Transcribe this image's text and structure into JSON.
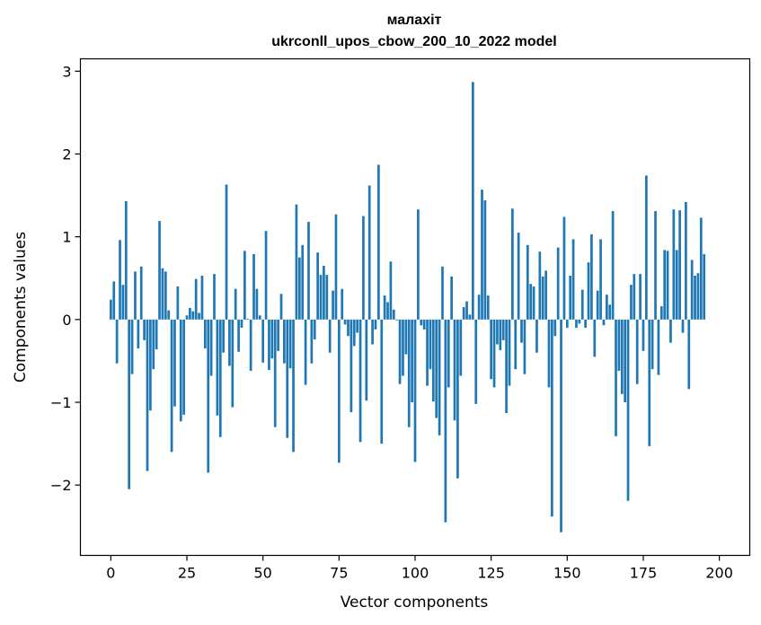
{
  "chart_data": {
    "type": "bar",
    "title": "малахіт",
    "subtitle": "ukrconll_upos_cbow_200_10_2022 model",
    "xlabel": "Vector components",
    "ylabel": "Components values",
    "xlim": [
      -10,
      210
    ],
    "ylim": [
      -2.85,
      3.15
    ],
    "xticks": [
      0,
      25,
      50,
      75,
      100,
      125,
      150,
      175,
      200
    ],
    "yticks": [
      -2,
      -1,
      0,
      1,
      2,
      3
    ],
    "bar_color": "#1f77b4",
    "grid": false,
    "values": [
      0.24,
      0.46,
      -0.53,
      0.96,
      0.42,
      1.43,
      -2.05,
      -0.66,
      0.58,
      -0.35,
      0.64,
      -0.25,
      -1.83,
      -1.1,
      -0.6,
      -0.36,
      1.19,
      0.62,
      0.58,
      0.11,
      -1.6,
      -1.05,
      0.4,
      -1.23,
      -1.15,
      0.05,
      0.14,
      0.1,
      0.49,
      0.08,
      0.53,
      -0.35,
      -1.85,
      -0.68,
      0.55,
      -1.16,
      -1.42,
      -0.4,
      1.63,
      -0.56,
      -1.06,
      0.37,
      -0.39,
      -0.1,
      0.83,
      0.01,
      -0.62,
      0.79,
      0.37,
      0.05,
      -0.52,
      1.07,
      -0.61,
      -0.47,
      -1.3,
      -0.38,
      0.31,
      -0.53,
      -1.43,
      -0.59,
      -1.6,
      1.39,
      0.75,
      0.9,
      -0.79,
      1.18,
      -0.53,
      -0.24,
      0.81,
      0.54,
      0.65,
      0.54,
      -0.4,
      0.35,
      1.27,
      -1.73,
      0.37,
      -0.06,
      -0.2,
      -1.12,
      -0.32,
      -0.16,
      -1.48,
      1.25,
      -0.98,
      1.62,
      -0.3,
      -0.12,
      1.87,
      -1.5,
      0.29,
      0.21,
      0.7,
      0.12,
      -0.01,
      -0.78,
      -0.68,
      -0.42,
      -1.3,
      -1.0,
      -1.72,
      1.33,
      -0.07,
      -0.12,
      -0.8,
      -0.6,
      -0.99,
      -1.19,
      -1.4,
      0.64,
      -2.45,
      -0.82,
      0.52,
      -1.22,
      -1.92,
      -0.68,
      0.15,
      0.22,
      0.06,
      2.87,
      -1.02,
      0.3,
      1.57,
      1.44,
      0.29,
      -0.72,
      -0.82,
      -0.3,
      -0.37,
      -0.25,
      -1.13,
      -0.8,
      1.34,
      -0.6,
      1.05,
      -0.28,
      -0.66,
      0.9,
      0.43,
      0.4,
      -0.4,
      0.82,
      0.52,
      0.59,
      -0.82,
      -2.38,
      -0.2,
      0.87,
      -2.57,
      1.24,
      -0.1,
      0.53,
      0.97,
      -0.1,
      -0.05,
      0.36,
      -0.1,
      0.69,
      1.03,
      -0.45,
      0.35,
      0.97,
      -0.07,
      0.3,
      0.18,
      1.31,
      -1.41,
      -0.62,
      -0.9,
      -1.0,
      -2.19,
      0.42,
      0.55,
      -0.78,
      0.55,
      -0.38,
      1.74,
      -1.53,
      -0.6,
      1.31,
      -0.67,
      0.16,
      0.84,
      0.83,
      -0.28,
      1.33,
      0.84,
      1.32,
      -0.16,
      1.42,
      -0.84,
      0.72,
      0.53,
      0.56,
      1.23,
      0.79
    ]
  }
}
